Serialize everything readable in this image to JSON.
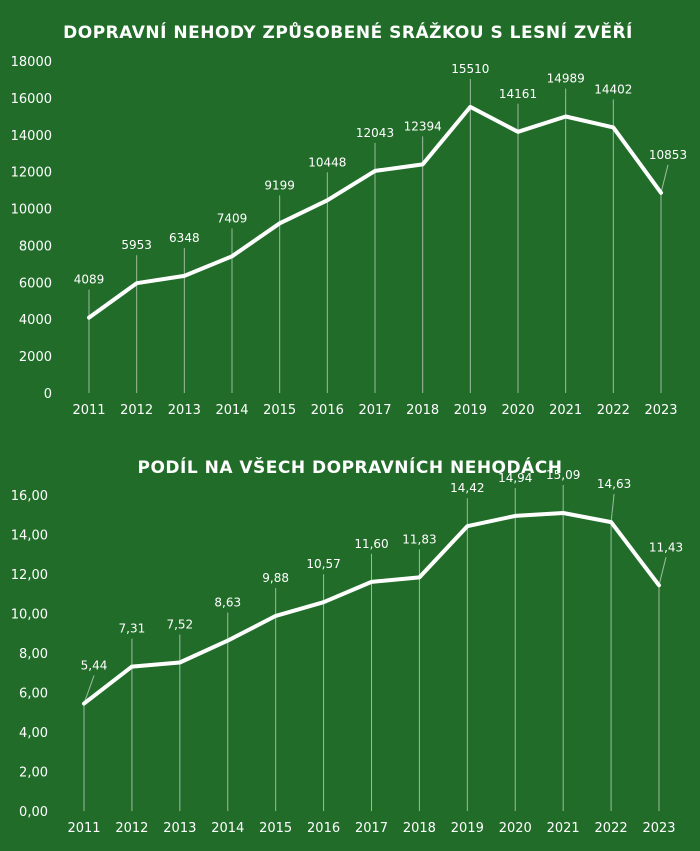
{
  "chart_data": [
    {
      "type": "line",
      "title": "DOPRAVNÍ NEHODY ZPŮSOBENÉ SRÁŽKOU S LESNÍ ZVĚŘÍ",
      "categories": [
        "2011",
        "2012",
        "2013",
        "2014",
        "2015",
        "2016",
        "2017",
        "2018",
        "2019",
        "2020",
        "2021",
        "2022",
        "2023"
      ],
      "series": [
        {
          "values": [
            4089,
            5953,
            6348,
            7409,
            9199,
            10448,
            12043,
            12394,
            15510,
            14161,
            14989,
            14402,
            10853
          ]
        }
      ],
      "data_labels": [
        "4089",
        "5953",
        "6348",
        "7409",
        "9199",
        "10448",
        "12043",
        "12394",
        "15510",
        "14161",
        "14989",
        "14402",
        "10853"
      ],
      "ylim": [
        0,
        18000
      ],
      "yticks": [
        "0",
        "2000",
        "4000",
        "6000",
        "8000",
        "10000",
        "12000",
        "14000",
        "16000",
        "18000"
      ],
      "xlabel": "",
      "ylabel": "",
      "grid": false,
      "line_color": "#ffffff"
    },
    {
      "type": "line",
      "title": "PODÍL NA VŠECH DOPRAVNÍCH NEHODÁCH",
      "categories": [
        "2011",
        "2012",
        "2013",
        "2014",
        "2015",
        "2016",
        "2017",
        "2018",
        "2019",
        "2020",
        "2021",
        "2022",
        "2023"
      ],
      "series": [
        {
          "values": [
            5.44,
            7.31,
            7.52,
            8.63,
            9.88,
            10.57,
            11.6,
            11.83,
            14.42,
            14.94,
            15.09,
            14.63,
            11.43
          ]
        }
      ],
      "data_labels": [
        "5,44",
        "7,31",
        "7,52",
        "8,63",
        "9,88",
        "10,57",
        "11,60",
        "11,83",
        "14,42",
        "14,94",
        "15,09",
        "14,63",
        "11,43"
      ],
      "ylim": [
        0,
        16
      ],
      "yticks": [
        "0,00",
        "2,00",
        "4,00",
        "6,00",
        "8,00",
        "10,00",
        "12,00",
        "14,00",
        "16,00"
      ],
      "xlabel": "",
      "ylabel": "",
      "grid": false,
      "line_color": "#ffffff"
    }
  ],
  "colors": {
    "background": "#226c2a",
    "line": "#ffffff"
  }
}
